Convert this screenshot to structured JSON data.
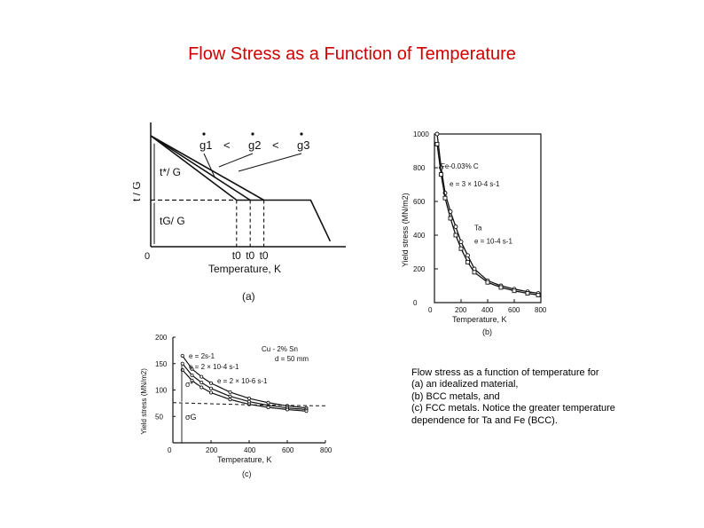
{
  "slide": {
    "title": "Flow Stress as a Function of Temperature",
    "caption_lines": [
      "Flow stress as a function of temperature for",
      "(a) an idealized material,",
      "(b) BCC metals, and",
      "(c) FCC metals. Notice the greater temperature",
      "dependence for Ta and Fe (BCC)."
    ]
  },
  "chart_data": [
    {
      "type": "line",
      "panel_label": "(a)",
      "title": "",
      "xlabel": "Temperature, K",
      "ylabel": "t / G",
      "x_origin_label": "0",
      "rate_labels": [
        "g1",
        "g2",
        "g3"
      ],
      "rate_relation": "g1 < g2 < g3",
      "annotations": [
        "t*/ G",
        "tG/ G"
      ],
      "t0_labels": [
        "t0",
        "t0",
        "t0"
      ],
      "series": [
        {
          "name": "g1",
          "x": [
            0,
            0.44,
            0.82,
            0.92
          ],
          "y": [
            1.0,
            0.42,
            0.42,
            0.05
          ]
        },
        {
          "name": "g2",
          "x": [
            0,
            0.51
          ],
          "y": [
            1.0,
            0.42
          ]
        },
        {
          "name": "g3",
          "x": [
            0,
            0.58
          ],
          "y": [
            1.0,
            0.42
          ]
        }
      ],
      "athermal_level": 0.42
    },
    {
      "type": "line",
      "panel_label": "(b)",
      "title": "",
      "xlabel": "Temperature, K",
      "ylabel": "Yield stress (MN/m2)",
      "xlim": [
        0,
        800
      ],
      "ylim": [
        0,
        1000
      ],
      "xticks": [
        "0",
        "200",
        "400",
        "600",
        "800"
      ],
      "yticks": [
        "0",
        "200",
        "400",
        "600",
        "800",
        "1000"
      ],
      "series_labels": [
        "Fe-0.03% C",
        "e = 3 × 10-4 s-1",
        "Ta",
        "e = 10-4 s-1"
      ],
      "series": [
        {
          "name": "Fe-0.03% C",
          "x": [
            20,
            50,
            80,
            120,
            160,
            200,
            250,
            300,
            400,
            500,
            600,
            700,
            780
          ],
          "y": [
            1000,
            800,
            650,
            540,
            450,
            360,
            280,
            200,
            130,
            100,
            80,
            65,
            55
          ]
        },
        {
          "name": "Ta",
          "x": [
            20,
            50,
            80,
            120,
            160,
            200,
            250,
            300,
            400,
            500,
            600,
            700,
            780
          ],
          "y": [
            940,
            760,
            620,
            500,
            400,
            320,
            240,
            180,
            120,
            90,
            70,
            55,
            45
          ]
        }
      ]
    },
    {
      "type": "line",
      "panel_label": "(c)",
      "title": "",
      "xlabel": "Temperature, K",
      "ylabel": "Yield stress (MN/m2)",
      "xlim": [
        0,
        800
      ],
      "ylim": [
        0,
        200
      ],
      "xticks": [
        "0",
        "200",
        "400",
        "600",
        "800"
      ],
      "yticks": [
        "50",
        "100",
        "150",
        "200"
      ],
      "legend": [
        "Cu - 2% Sn",
        "d = 50 mm"
      ],
      "series_labels": [
        "e = 2s-1",
        "e = 2 × 10-4 s-1",
        "e = 2 × 10-6 s-1"
      ],
      "annotations": [
        "σ*",
        "σG"
      ],
      "series": [
        {
          "name": "e = 2s-1",
          "x": [
            50,
            100,
            150,
            200,
            300,
            400,
            500,
            600,
            700
          ],
          "y": [
            165,
            140,
            125,
            113,
            96,
            84,
            76,
            70,
            66
          ]
        },
        {
          "name": "e = 2 × 10-4 s-1",
          "x": [
            50,
            100,
            150,
            200,
            300,
            400,
            500,
            600,
            700
          ],
          "y": [
            150,
            128,
            114,
            103,
            88,
            78,
            71,
            66,
            63
          ]
        },
        {
          "name": "e = 2 × 10-6 s-1",
          "x": [
            50,
            100,
            150,
            200,
            300,
            400,
            500,
            600,
            700
          ],
          "y": [
            138,
            118,
            105,
            95,
            82,
            73,
            67,
            63,
            60
          ]
        },
        {
          "name": "σG",
          "x": [
            0,
            200,
            400,
            600,
            800
          ],
          "y": [
            76,
            74,
            72,
            71,
            70
          ]
        }
      ]
    }
  ]
}
